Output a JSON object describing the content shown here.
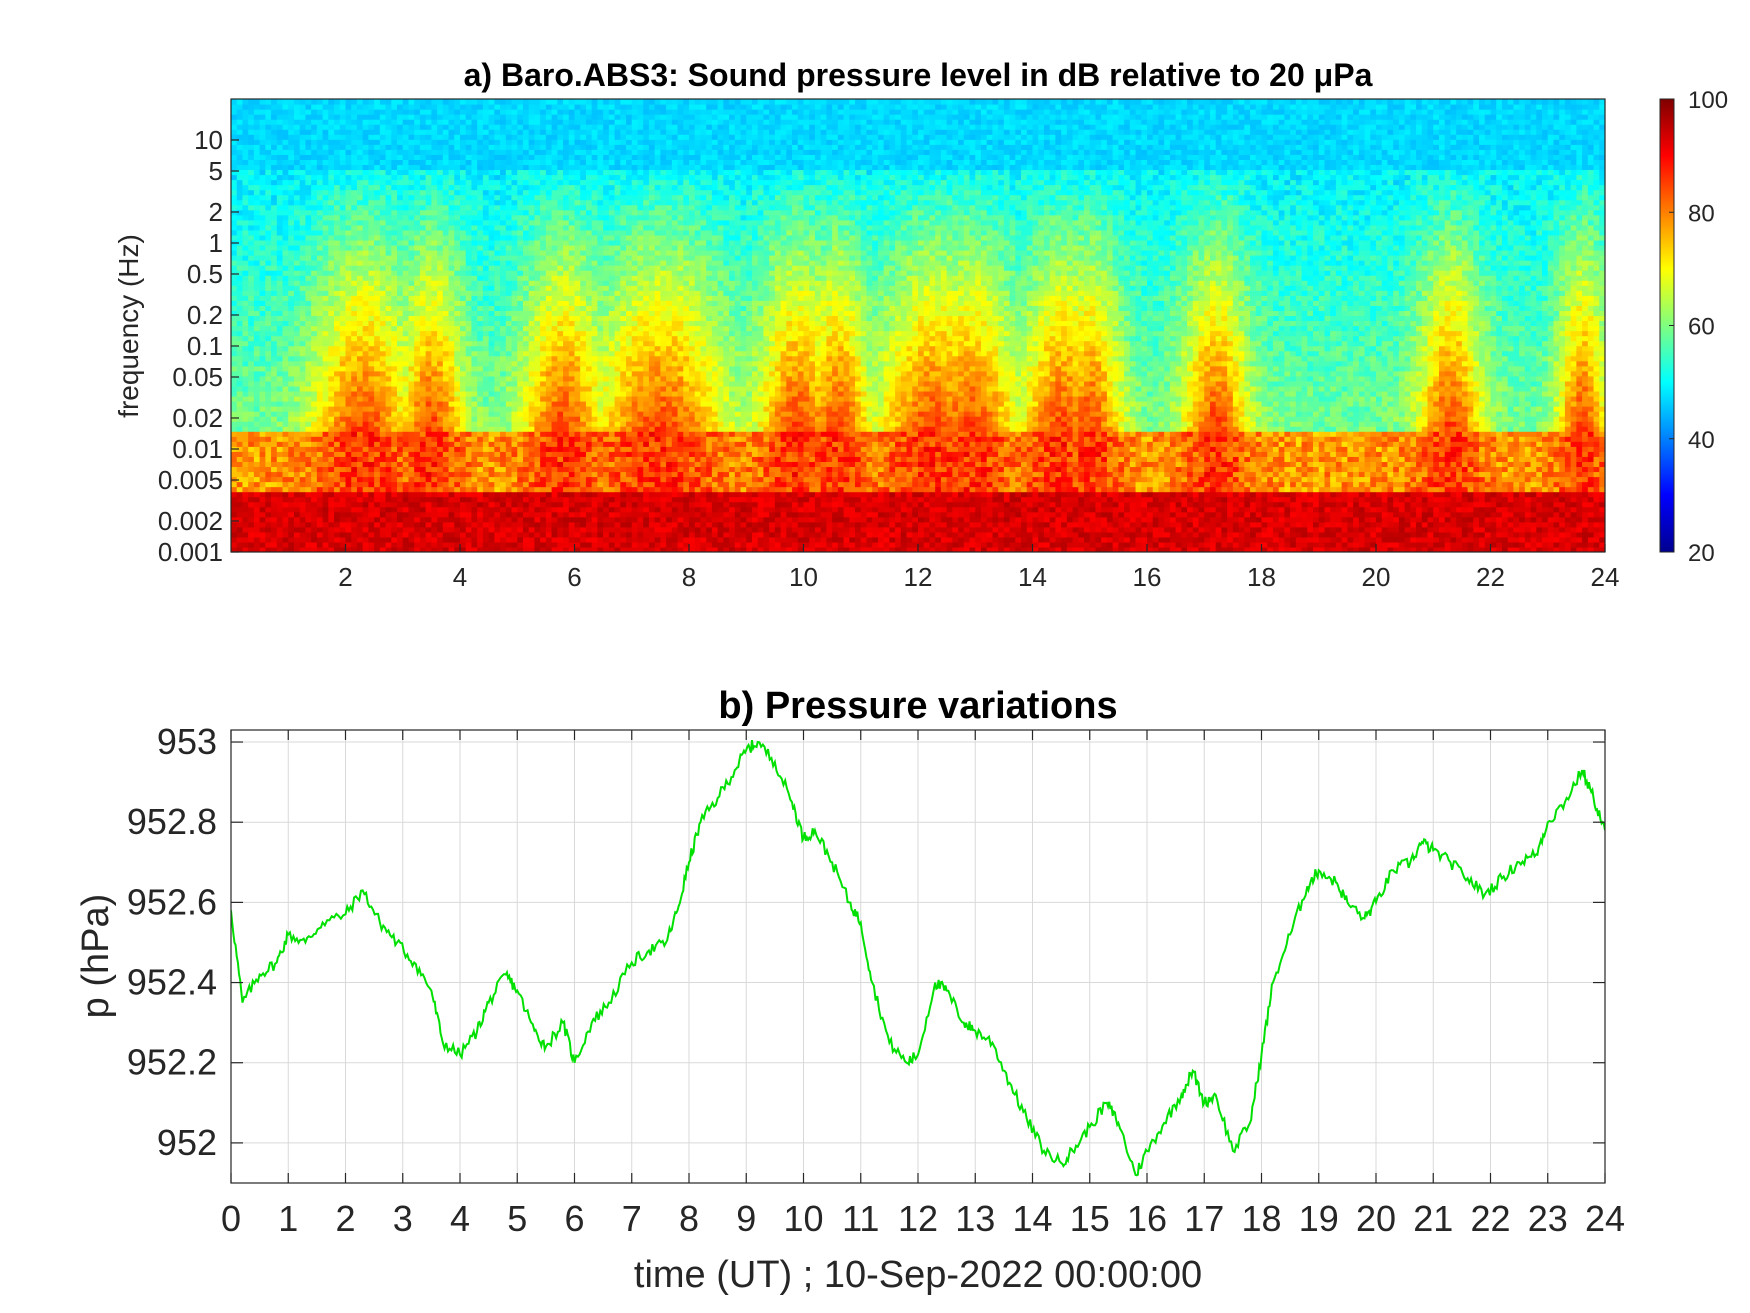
{
  "chart_data": [
    {
      "type": "heatmap",
      "title": "a) Baro.ABS3: Sound pressure level in dB relative to 20 μPa",
      "ylabel": "frequency (Hz)",
      "xlabel": "",
      "x_ticks": [
        "2",
        "4",
        "6",
        "8",
        "10",
        "12",
        "14",
        "16",
        "18",
        "20",
        "22",
        "24"
      ],
      "y_ticks": [
        "10",
        "5",
        "2",
        "1",
        "0.5",
        "0.2",
        "0.1",
        "0.05",
        "0.02",
        "0.01",
        "0.005",
        "0.002",
        "0.001"
      ],
      "xlim": [
        0,
        24
      ],
      "ylim": [
        0.001,
        25
      ],
      "yscale": "log",
      "colorbar": {
        "ticks": [
          "100",
          "80",
          "60",
          "40",
          "20"
        ],
        "range": [
          20,
          100
        ],
        "colormap": "jet"
      },
      "description_levels": {
        "low_freq_db": 90,
        "mid_freq_db": 55,
        "high_freq_db": 45
      }
    },
    {
      "type": "line",
      "title": "b) Pressure variations",
      "xlabel": "time (UT) ; 10-Sep-2022 00:00:00",
      "ylabel": "p (hPa)",
      "xlim": [
        0,
        24
      ],
      "ylim": [
        951.9,
        953.03
      ],
      "x_ticks": [
        "0",
        "1",
        "2",
        "3",
        "4",
        "5",
        "6",
        "7",
        "8",
        "9",
        "10",
        "11",
        "12",
        "13",
        "14",
        "15",
        "16",
        "17",
        "18",
        "19",
        "20",
        "21",
        "22",
        "23",
        "24"
      ],
      "y_ticks": [
        "953",
        "952.8",
        "952.6",
        "952.4",
        "952.2",
        "952"
      ],
      "grid": true,
      "line_color": "#00e000",
      "x": [
        0,
        0.2,
        0.5,
        0.8,
        1.0,
        1.3,
        1.6,
        2.0,
        2.3,
        2.6,
        2.9,
        3.2,
        3.5,
        3.7,
        4.0,
        4.3,
        4.5,
        4.8,
        5.0,
        5.3,
        5.5,
        5.8,
        6.0,
        6.3,
        6.6,
        7.0,
        7.3,
        7.6,
        7.8,
        8.0,
        8.2,
        8.5,
        8.8,
        9.0,
        9.2,
        9.5,
        9.8,
        10.0,
        10.2,
        10.5,
        10.8,
        11.0,
        11.2,
        11.5,
        11.8,
        12.0,
        12.3,
        12.5,
        12.8,
        13.0,
        13.3,
        13.6,
        13.9,
        14.2,
        14.5,
        14.7,
        15.0,
        15.3,
        15.5,
        15.8,
        16.0,
        16.3,
        16.6,
        16.8,
        17.0,
        17.2,
        17.5,
        17.8,
        18.0,
        18.2,
        18.5,
        18.8,
        19.0,
        19.3,
        19.5,
        19.8,
        20.0,
        20.3,
        20.6,
        20.8,
        21.0,
        21.3,
        21.6,
        21.9,
        22.2,
        22.5,
        22.8,
        23.0,
        23.3,
        23.6,
        23.8,
        24.0
      ],
      "values": [
        952.58,
        952.35,
        952.42,
        952.45,
        952.52,
        952.5,
        952.55,
        952.57,
        952.63,
        952.55,
        952.5,
        952.45,
        952.38,
        952.25,
        952.22,
        952.28,
        952.35,
        952.42,
        952.38,
        952.28,
        952.24,
        952.3,
        952.2,
        952.3,
        952.35,
        952.45,
        952.48,
        952.5,
        952.58,
        952.7,
        952.8,
        952.86,
        952.93,
        952.98,
        953.0,
        952.95,
        952.85,
        952.76,
        952.78,
        952.7,
        952.6,
        952.55,
        952.4,
        952.25,
        952.2,
        952.22,
        952.4,
        952.38,
        952.3,
        952.28,
        952.25,
        952.15,
        952.06,
        951.98,
        951.95,
        951.98,
        952.04,
        952.1,
        952.05,
        951.92,
        951.98,
        952.05,
        952.12,
        952.18,
        952.1,
        952.12,
        951.98,
        952.05,
        952.22,
        952.4,
        952.52,
        952.64,
        952.68,
        952.65,
        952.6,
        952.56,
        952.6,
        952.68,
        952.7,
        952.75,
        952.73,
        952.7,
        952.66,
        952.62,
        952.66,
        952.7,
        952.72,
        952.8,
        952.85,
        952.93,
        952.86,
        952.78
      ]
    }
  ]
}
